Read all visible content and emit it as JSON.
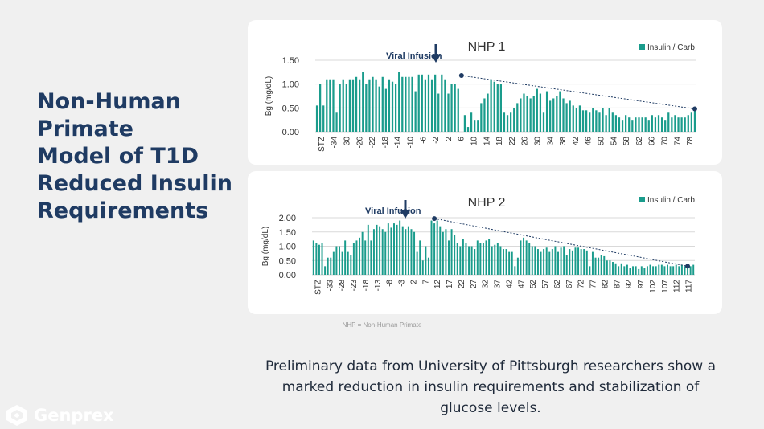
{
  "slide": {
    "title_lines": [
      "Non-Human",
      "Primate",
      "Model of T1D",
      "Reduced Insulin",
      "Requirements"
    ],
    "footnote": "NHP = Non-Human Primate",
    "caption_lines": [
      "Preliminary data from University of Pittsburgh researchers show a",
      "marked reduction in insulin requirements and stabilization of",
      "glucose levels."
    ],
    "logo_text": "Genprex"
  },
  "colors": {
    "bar": "#1a9c8c",
    "trend": "#1f3b63",
    "title": "#1f3b63",
    "grid": "#d9d9d9"
  },
  "chart_data": [
    {
      "type": "bar",
      "title": "NHP 1",
      "ylabel": "Bg (mg/dL)",
      "legend": "Insulin / Carb",
      "legend_position": "top-right",
      "annotation": "Viral Infusion",
      "ylim": [
        0,
        1.5
      ],
      "yticks": [
        "0.00",
        "0.50",
        "1.00",
        "1.50"
      ],
      "grid": true,
      "x_labels": [
        "STZ",
        "-34",
        "-30",
        "-26",
        "-22",
        "-18",
        "-14",
        "-10",
        "-6",
        "-2",
        "2",
        "6",
        "10",
        "14",
        "18",
        "22",
        "26",
        "30",
        "34",
        "38",
        "42",
        "46",
        "50",
        "54",
        "58",
        "62",
        "66",
        "70",
        "74",
        "78"
      ],
      "values": [
        0.55,
        1.0,
        0.55,
        1.1,
        1.1,
        1.1,
        0.4,
        1.0,
        1.1,
        1.0,
        1.1,
        1.1,
        1.15,
        1.1,
        1.25,
        1.0,
        1.1,
        1.15,
        1.1,
        0.95,
        1.15,
        0.9,
        1.1,
        1.05,
        1.0,
        1.25,
        1.15,
        1.15,
        1.15,
        1.15,
        0.85,
        1.2,
        1.2,
        1.1,
        1.2,
        1.1,
        1.2,
        0.8,
        1.2,
        1.1,
        0.8,
        1.0,
        1.0,
        0.9,
        0.0,
        0.35,
        0.1,
        0.4,
        0.25,
        0.25,
        0.6,
        0.7,
        0.8,
        1.1,
        1.05,
        1.0,
        1.0,
        0.4,
        0.35,
        0.4,
        0.5,
        0.6,
        0.7,
        0.8,
        0.75,
        0.7,
        0.75,
        0.9,
        0.8,
        0.4,
        0.85,
        0.65,
        0.7,
        0.75,
        0.85,
        0.7,
        0.6,
        0.65,
        0.55,
        0.5,
        0.55,
        0.45,
        0.45,
        0.4,
        0.5,
        0.45,
        0.4,
        0.5,
        0.35,
        0.5,
        0.4,
        0.35,
        0.3,
        0.25,
        0.35,
        0.3,
        0.25,
        0.3,
        0.3,
        0.3,
        0.3,
        0.25,
        0.35,
        0.3,
        0.35,
        0.3,
        0.25,
        0.4,
        0.3,
        0.35,
        0.3,
        0.3,
        0.3,
        0.35,
        0.4,
        0.5
      ],
      "trend": {
        "from_index": 44,
        "from_value": 1.18,
        "to_index": 115,
        "to_value": 0.48
      }
    },
    {
      "type": "bar",
      "title": "NHP 2",
      "ylabel": "Bg (mg/dL)",
      "legend": "Insulin / Carb",
      "legend_position": "top-right",
      "annotation": "Viral Infusion",
      "ylim": [
        0,
        2.0
      ],
      "yticks": [
        "0.00",
        "0.50",
        "1.00",
        "1.50",
        "2.00"
      ],
      "grid": true,
      "x_labels": [
        "STZ",
        "-33",
        "-28",
        "-23",
        "-18",
        "-13",
        "-8",
        "-3",
        "2",
        "7",
        "12",
        "17",
        "22",
        "27",
        "32",
        "37",
        "42",
        "47",
        "52",
        "57",
        "62",
        "67",
        "72",
        "77",
        "82",
        "87",
        "92",
        "97",
        "102",
        "107",
        "112",
        "117"
      ],
      "values": [
        1.2,
        1.1,
        1.05,
        1.1,
        0.3,
        0.6,
        0.6,
        0.8,
        1.0,
        1.0,
        0.8,
        1.2,
        0.8,
        0.7,
        1.1,
        1.2,
        1.3,
        1.5,
        1.2,
        1.75,
        1.2,
        1.6,
        1.75,
        1.7,
        1.6,
        1.5,
        1.8,
        1.65,
        1.8,
        1.75,
        1.9,
        1.7,
        1.6,
        1.7,
        1.6,
        1.5,
        0.8,
        1.2,
        0.5,
        1.0,
        0.6,
        1.9,
        1.8,
        1.9,
        1.7,
        1.5,
        1.6,
        1.2,
        1.6,
        1.4,
        1.1,
        1.0,
        1.25,
        1.1,
        1.0,
        1.0,
        0.9,
        1.2,
        1.1,
        1.1,
        1.2,
        1.25,
        1.0,
        1.05,
        1.1,
        1.0,
        0.9,
        0.9,
        0.8,
        0.8,
        0.3,
        0.6,
        1.2,
        1.3,
        1.2,
        1.1,
        1.0,
        1.0,
        0.9,
        0.8,
        0.9,
        0.95,
        0.8,
        0.9,
        1.0,
        0.8,
        0.95,
        1.0,
        0.7,
        0.9,
        0.85,
        0.95,
        0.95,
        0.9,
        0.9,
        0.85,
        0.3,
        0.8,
        0.6,
        0.6,
        0.7,
        0.65,
        0.5,
        0.5,
        0.45,
        0.4,
        0.3,
        0.4,
        0.3,
        0.35,
        0.25,
        0.3,
        0.3,
        0.2,
        0.3,
        0.25,
        0.3,
        0.35,
        0.3,
        0.3,
        0.35,
        0.35,
        0.3,
        0.35,
        0.3,
        0.3,
        0.35,
        0.3,
        0.35,
        0.3,
        0.35,
        0.3,
        0.35
      ],
      "trend": {
        "from_index": 42,
        "from_value": 1.97,
        "to_index": 130,
        "to_value": 0.3
      }
    }
  ]
}
